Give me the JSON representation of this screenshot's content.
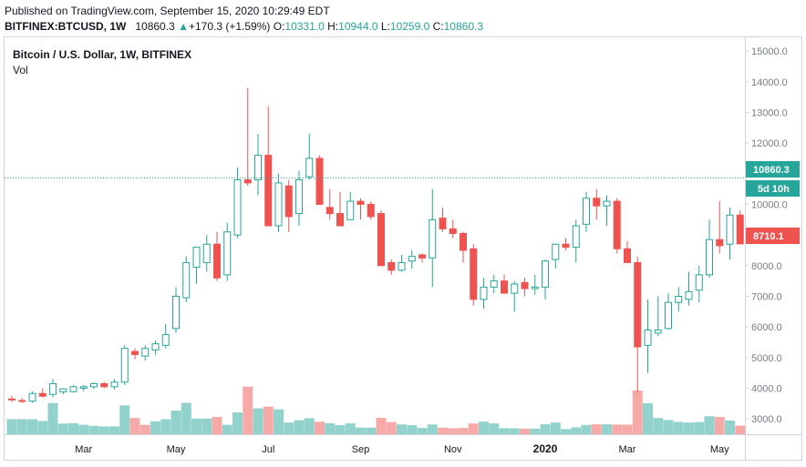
{
  "header": {
    "published": "Published on TradingView.com, September 15, 2020 10:29:49 EDT",
    "symbol": "BITFINEX:BTCUSD, 1W",
    "last": "10860.3",
    "change_symbol": "▲",
    "change": "+170.3 (+1.59%)",
    "o_label": "O:",
    "o_value": "10331.0",
    "h_label": "H:",
    "h_value": "10944.0",
    "l_label": "L:",
    "l_value": "10259.0",
    "c_label": "C:",
    "c_value": "10860.3"
  },
  "legend": {
    "title": "Bitcoin / U.S. Dollar, 1W, BITFINEX",
    "volume": "Vol"
  },
  "tags": {
    "price": "10860.3",
    "countdown": "5d 10h",
    "secondary": "8710.1"
  },
  "colors": {
    "up": "#26a69a",
    "down": "#ef5350",
    "vol_up": "#92d2cc",
    "vol_down": "#f7a9a7"
  },
  "chart_data": {
    "type": "candlestick",
    "interval": "1W",
    "ylim": [
      2500,
      15300
    ],
    "y_ticks": [
      3000,
      4000,
      5000,
      6000,
      7000,
      8000,
      9000,
      10000,
      11000,
      12000,
      13000,
      14000,
      15000
    ],
    "y_tick_labels": [
      "3000.0",
      "4000.0",
      "5000.0",
      "6000.0",
      "7000.0",
      "8000.0",
      "9000.0",
      "10000.0",
      "11000.0",
      "12000.0",
      "13000.0",
      "14000.0",
      "15000.0"
    ],
    "x_ticks": [
      {
        "label": "Mar",
        "index": 7,
        "bold": false
      },
      {
        "label": "May",
        "index": 16,
        "bold": false
      },
      {
        "label": "Jul",
        "index": 25,
        "bold": false
      },
      {
        "label": "Sep",
        "index": 34,
        "bold": false
      },
      {
        "label": "Nov",
        "index": 43,
        "bold": false
      },
      {
        "label": "2020",
        "index": 52,
        "bold": true
      },
      {
        "label": "Mar",
        "index": 60,
        "bold": false
      },
      {
        "label": "May",
        "index": 69,
        "bold": false
      }
    ],
    "last_price": 10860.3,
    "candles": [
      {
        "o": 3650,
        "h": 3750,
        "l": 3550,
        "c": 3620
      },
      {
        "o": 3600,
        "h": 3680,
        "l": 3520,
        "c": 3580
      },
      {
        "o": 3580,
        "h": 3900,
        "l": 3520,
        "c": 3830
      },
      {
        "o": 3830,
        "h": 4000,
        "l": 3700,
        "c": 3740
      },
      {
        "o": 3800,
        "h": 4300,
        "l": 3700,
        "c": 4150
      },
      {
        "o": 3880,
        "h": 4000,
        "l": 3800,
        "c": 3980
      },
      {
        "o": 3890,
        "h": 4100,
        "l": 3860,
        "c": 4050
      },
      {
        "o": 4000,
        "h": 4100,
        "l": 3900,
        "c": 4050
      },
      {
        "o": 4050,
        "h": 4200,
        "l": 3970,
        "c": 4150
      },
      {
        "o": 4150,
        "h": 4200,
        "l": 4000,
        "c": 4050
      },
      {
        "o": 4050,
        "h": 4300,
        "l": 3950,
        "c": 4200
      },
      {
        "o": 4200,
        "h": 5400,
        "l": 4100,
        "c": 5300
      },
      {
        "o": 5200,
        "h": 5300,
        "l": 4950,
        "c": 5100
      },
      {
        "o": 5050,
        "h": 5400,
        "l": 4900,
        "c": 5300
      },
      {
        "o": 5250,
        "h": 5550,
        "l": 5100,
        "c": 5450
      },
      {
        "o": 5400,
        "h": 6100,
        "l": 5300,
        "c": 5750
      },
      {
        "o": 5950,
        "h": 7300,
        "l": 5800,
        "c": 7000
      },
      {
        "o": 6950,
        "h": 8300,
        "l": 6800,
        "c": 8100
      },
      {
        "o": 7950,
        "h": 8500,
        "l": 7400,
        "c": 8600
      },
      {
        "o": 8100,
        "h": 9000,
        "l": 7800,
        "c": 8700
      },
      {
        "o": 8700,
        "h": 9100,
        "l": 7500,
        "c": 7600
      },
      {
        "o": 7700,
        "h": 9400,
        "l": 7500,
        "c": 9100
      },
      {
        "o": 9000,
        "h": 11200,
        "l": 8900,
        "c": 10800
      },
      {
        "o": 10800,
        "h": 13800,
        "l": 10600,
        "c": 10700
      },
      {
        "o": 10800,
        "h": 12300,
        "l": 10300,
        "c": 11600
      },
      {
        "o": 11600,
        "h": 13200,
        "l": 9400,
        "c": 9300
      },
      {
        "o": 9300,
        "h": 11000,
        "l": 9100,
        "c": 10700
      },
      {
        "o": 10600,
        "h": 10800,
        "l": 9100,
        "c": 9600
      },
      {
        "o": 9700,
        "h": 11100,
        "l": 9300,
        "c": 10800
      },
      {
        "o": 10900,
        "h": 12300,
        "l": 10800,
        "c": 11500
      },
      {
        "o": 11500,
        "h": 11600,
        "l": 10100,
        "c": 10000
      },
      {
        "o": 9900,
        "h": 10500,
        "l": 9500,
        "c": 9700
      },
      {
        "o": 9700,
        "h": 10400,
        "l": 9300,
        "c": 9300
      },
      {
        "o": 9500,
        "h": 10400,
        "l": 9600,
        "c": 10100
      },
      {
        "o": 10100,
        "h": 10200,
        "l": 9500,
        "c": 10000
      },
      {
        "o": 10000,
        "h": 10100,
        "l": 9500,
        "c": 9600
      },
      {
        "o": 9700,
        "h": 9800,
        "l": 8100,
        "c": 8000
      },
      {
        "o": 8100,
        "h": 8200,
        "l": 7700,
        "c": 7850
      },
      {
        "o": 7850,
        "h": 8350,
        "l": 7800,
        "c": 8100
      },
      {
        "o": 8150,
        "h": 8500,
        "l": 7900,
        "c": 8300
      },
      {
        "o": 8350,
        "h": 8400,
        "l": 8100,
        "c": 8250
      },
      {
        "o": 8250,
        "h": 10500,
        "l": 7300,
        "c": 9500
      },
      {
        "o": 9550,
        "h": 9900,
        "l": 9100,
        "c": 9200
      },
      {
        "o": 9200,
        "h": 9500,
        "l": 8900,
        "c": 9050
      },
      {
        "o": 9050,
        "h": 9100,
        "l": 8100,
        "c": 8500
      },
      {
        "o": 8550,
        "h": 8700,
        "l": 6700,
        "c": 6900
      },
      {
        "o": 6900,
        "h": 7600,
        "l": 6600,
        "c": 7300
      },
      {
        "o": 7300,
        "h": 7700,
        "l": 7100,
        "c": 7500
      },
      {
        "o": 7500,
        "h": 7700,
        "l": 7100,
        "c": 7100
      },
      {
        "o": 7100,
        "h": 7500,
        "l": 6500,
        "c": 7400
      },
      {
        "o": 7450,
        "h": 7600,
        "l": 7000,
        "c": 7250
      },
      {
        "o": 7250,
        "h": 7700,
        "l": 7050,
        "c": 7300
      },
      {
        "o": 7300,
        "h": 8200,
        "l": 6900,
        "c": 8150
      },
      {
        "o": 8200,
        "h": 8700,
        "l": 7900,
        "c": 8700
      },
      {
        "o": 8700,
        "h": 8900,
        "l": 8500,
        "c": 8600
      },
      {
        "o": 8600,
        "h": 9500,
        "l": 8100,
        "c": 9300
      },
      {
        "o": 9350,
        "h": 10400,
        "l": 9100,
        "c": 10200
      },
      {
        "o": 10200,
        "h": 10500,
        "l": 9500,
        "c": 9950
      },
      {
        "o": 9950,
        "h": 10300,
        "l": 9300,
        "c": 10100
      },
      {
        "o": 10100,
        "h": 10200,
        "l": 8400,
        "c": 8550
      },
      {
        "o": 8550,
        "h": 8800,
        "l": 8100,
        "c": 8100
      },
      {
        "o": 8100,
        "h": 8300,
        "l": 3850,
        "c": 5350
      },
      {
        "o": 5400,
        "h": 6900,
        "l": 4500,
        "c": 5900
      },
      {
        "o": 5800,
        "h": 7000,
        "l": 5700,
        "c": 5900
      },
      {
        "o": 5950,
        "h": 7100,
        "l": 5900,
        "c": 6800
      },
      {
        "o": 6800,
        "h": 7300,
        "l": 6500,
        "c": 7000
      },
      {
        "o": 6900,
        "h": 7800,
        "l": 6700,
        "c": 7150
      },
      {
        "o": 7200,
        "h": 8000,
        "l": 6800,
        "c": 7700
      },
      {
        "o": 7700,
        "h": 9500,
        "l": 7600,
        "c": 8850
      },
      {
        "o": 8850,
        "h": 10100,
        "l": 8400,
        "c": 8650
      },
      {
        "o": 8700,
        "h": 9900,
        "l": 8200,
        "c": 9650
      },
      {
        "o": 9650,
        "h": 9800,
        "l": 8700,
        "c": 8710
      }
    ],
    "volume": [
      {
        "v": 1.0,
        "d": false
      },
      {
        "v": 1.0,
        "d": false
      },
      {
        "v": 1.0,
        "d": false
      },
      {
        "v": 0.88,
        "d": false
      },
      {
        "v": 2.08,
        "d": false
      },
      {
        "v": 0.71,
        "d": false
      },
      {
        "v": 0.73,
        "d": false
      },
      {
        "v": 0.63,
        "d": false
      },
      {
        "v": 0.56,
        "d": false
      },
      {
        "v": 0.52,
        "d": false
      },
      {
        "v": 0.52,
        "d": false
      },
      {
        "v": 1.92,
        "d": false
      },
      {
        "v": 1.08,
        "d": true
      },
      {
        "v": 0.62,
        "d": true
      },
      {
        "v": 0.86,
        "d": false
      },
      {
        "v": 1.0,
        "d": false
      },
      {
        "v": 1.57,
        "d": false
      },
      {
        "v": 2.09,
        "d": false
      },
      {
        "v": 1.04,
        "d": false
      },
      {
        "v": 1.04,
        "d": false
      },
      {
        "v": 1.15,
        "d": true
      },
      {
        "v": 0.63,
        "d": false
      },
      {
        "v": 1.45,
        "d": false
      },
      {
        "v": 3.17,
        "d": true
      },
      {
        "v": 1.72,
        "d": false
      },
      {
        "v": 1.84,
        "d": true
      },
      {
        "v": 1.66,
        "d": false
      },
      {
        "v": 0.78,
        "d": false
      },
      {
        "v": 0.93,
        "d": false
      },
      {
        "v": 1.07,
        "d": false
      },
      {
        "v": 0.83,
        "d": true
      },
      {
        "v": 0.73,
        "d": false
      },
      {
        "v": 0.61,
        "d": false
      },
      {
        "v": 0.72,
        "d": false
      },
      {
        "v": 0.44,
        "d": false
      },
      {
        "v": 0.44,
        "d": false
      },
      {
        "v": 1.09,
        "d": true
      },
      {
        "v": 0.81,
        "d": true
      },
      {
        "v": 0.65,
        "d": false
      },
      {
        "v": 0.6,
        "d": false
      },
      {
        "v": 0.42,
        "d": false
      },
      {
        "v": 0.65,
        "d": false
      },
      {
        "v": 0.44,
        "d": true
      },
      {
        "v": 0.4,
        "d": true
      },
      {
        "v": 0.42,
        "d": true
      },
      {
        "v": 0.72,
        "d": true
      },
      {
        "v": 0.84,
        "d": false
      },
      {
        "v": 0.72,
        "d": false
      },
      {
        "v": 0.4,
        "d": false
      },
      {
        "v": 0.39,
        "d": false
      },
      {
        "v": 0.37,
        "d": true
      },
      {
        "v": 0.37,
        "d": false
      },
      {
        "v": 0.66,
        "d": false
      },
      {
        "v": 0.78,
        "d": false
      },
      {
        "v": 0.34,
        "d": false
      },
      {
        "v": 0.46,
        "d": false
      },
      {
        "v": 0.62,
        "d": false
      },
      {
        "v": 0.66,
        "d": true
      },
      {
        "v": 0.66,
        "d": false
      },
      {
        "v": 0.64,
        "d": true
      },
      {
        "v": 0.64,
        "d": true
      },
      {
        "v": 2.91,
        "d": true
      },
      {
        "v": 2.07,
        "d": false
      },
      {
        "v": 1.08,
        "d": false
      },
      {
        "v": 0.94,
        "d": false
      },
      {
        "v": 0.82,
        "d": false
      },
      {
        "v": 0.78,
        "d": false
      },
      {
        "v": 0.81,
        "d": false
      },
      {
        "v": 1.2,
        "d": false
      },
      {
        "v": 1.15,
        "d": true
      },
      {
        "v": 0.91,
        "d": false
      },
      {
        "v": 0.57,
        "d": true
      }
    ]
  }
}
